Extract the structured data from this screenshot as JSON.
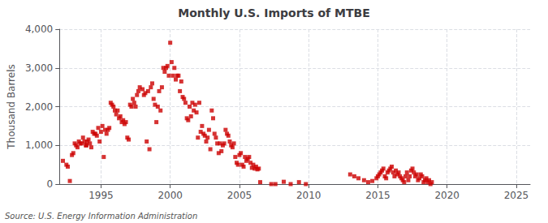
{
  "chart_data": {
    "type": "scatter",
    "title": "Monthly U.S. Imports of MTBE",
    "ylabel": "Thousand Barrels",
    "annotations": [
      "Source: U.S. Energy Information Administration"
    ],
    "color": "#cc0000",
    "marker": "square",
    "grid": true,
    "xlim": [
      1992.0,
      2026.0
    ],
    "xticks": [
      1995,
      2000,
      2005,
      2010,
      2015,
      2020,
      2025
    ],
    "ylim": [
      0,
      4000
    ],
    "yticks": [
      0,
      {
        "value": 1000,
        "label": "1,000"
      },
      {
        "value": 2000,
        "label": "2,000"
      },
      {
        "value": 3000,
        "label": "3,000"
      },
      {
        "value": 4000,
        "label": "4,000"
      }
    ],
    "x": [
      1992.25,
      1992.5,
      1992.6,
      1992.75,
      1992.9,
      1993.0,
      1993.1,
      1993.2,
      1993.3,
      1993.4,
      1993.5,
      1993.6,
      1993.7,
      1993.8,
      1993.9,
      1993.95,
      1994.0,
      1994.1,
      1994.2,
      1994.3,
      1994.4,
      1994.5,
      1994.6,
      1994.7,
      1994.8,
      1994.9,
      1995.0,
      1995.1,
      1995.2,
      1995.3,
      1995.4,
      1995.5,
      1995.6,
      1995.7,
      1995.8,
      1995.9,
      1996.0,
      1996.1,
      1996.2,
      1996.3,
      1996.4,
      1996.5,
      1996.6,
      1996.7,
      1996.8,
      1996.9,
      1997.0,
      1997.1,
      1997.2,
      1997.3,
      1997.4,
      1997.5,
      1997.6,
      1997.7,
      1997.8,
      1998.0,
      1998.1,
      1998.2,
      1998.3,
      1998.4,
      1998.5,
      1998.6,
      1998.7,
      1998.8,
      1998.9,
      1999.0,
      1999.1,
      1999.2,
      1999.3,
      1999.4,
      1999.5,
      1999.6,
      1999.7,
      1999.8,
      1999.9,
      2000.0,
      2000.1,
      2000.2,
      2000.3,
      2000.4,
      2000.5,
      2000.6,
      2000.7,
      2000.8,
      2000.9,
      2001.0,
      2001.1,
      2001.2,
      2001.3,
      2001.4,
      2001.5,
      2001.6,
      2001.7,
      2001.8,
      2001.9,
      2002.0,
      2002.1,
      2002.2,
      2002.3,
      2002.4,
      2002.5,
      2002.6,
      2002.7,
      2002.8,
      2002.9,
      2003.0,
      2003.1,
      2003.2,
      2003.3,
      2003.4,
      2003.5,
      2003.6,
      2003.7,
      2003.8,
      2003.9,
      2004.0,
      2004.1,
      2004.2,
      2004.3,
      2004.4,
      2004.5,
      2004.6,
      2004.7,
      2004.8,
      2004.9,
      2005.0,
      2005.1,
      2005.2,
      2005.3,
      2005.4,
      2005.5,
      2005.6,
      2005.7,
      2005.8,
      2005.9,
      2006.0,
      2006.1,
      2006.2,
      2006.3,
      2006.4,
      2006.5,
      2007.3,
      2007.6,
      2008.2,
      2008.7,
      2009.3,
      2009.8,
      2013.0,
      2013.3,
      2013.6,
      2014.0,
      2014.3,
      2014.6,
      2014.9,
      2015.0,
      2015.1,
      2015.2,
      2015.3,
      2015.4,
      2015.5,
      2015.6,
      2015.7,
      2015.8,
      2015.9,
      2016.0,
      2016.1,
      2016.2,
      2016.3,
      2016.4,
      2016.5,
      2016.6,
      2016.7,
      2016.8,
      2016.9,
      2017.0,
      2017.1,
      2017.2,
      2017.3,
      2017.4,
      2017.5,
      2017.6,
      2017.7,
      2017.8,
      2017.9,
      2018.0,
      2018.1,
      2018.2,
      2018.3,
      2018.4,
      2018.5,
      2018.6,
      2018.7,
      2018.8,
      2018.9
    ],
    "values": [
      600,
      500,
      450,
      80,
      750,
      800,
      1050,
      1000,
      950,
      1100,
      1050,
      1050,
      1200,
      1100,
      1000,
      1000,
      1100,
      1150,
      1050,
      950,
      1350,
      1300,
      1300,
      1250,
      1450,
      1100,
      1350,
      1500,
      700,
      1400,
      1300,
      1400,
      1450,
      2100,
      2050,
      2000,
      1900,
      1800,
      1900,
      1700,
      1750,
      1600,
      1650,
      1550,
      1600,
      1200,
      1150,
      2050,
      2000,
      2200,
      2100,
      2000,
      2300,
      2400,
      2500,
      2450,
      2300,
      2350,
      1100,
      2400,
      900,
      2500,
      2600,
      2200,
      2050,
      1600,
      2000,
      2400,
      1900,
      2500,
      3000,
      2900,
      3000,
      3050,
      2800,
      3650,
      3150,
      2800,
      3000,
      2700,
      2800,
      2800,
      2400,
      2650,
      2250,
      2200,
      2100,
      1700,
      1650,
      2000,
      1750,
      2100,
      1900,
      2050,
      1850,
      1200,
      2100,
      1350,
      1500,
      1300,
      1250,
      1100,
      1200,
      1400,
      900,
      1900,
      1700,
      1300,
      1200,
      1050,
      800,
      1050,
      850,
      1000,
      1050,
      1400,
      1300,
      1250,
      1100,
      1000,
      950,
      1050,
      700,
      550,
      500,
      750,
      800,
      500,
      450,
      700,
      600,
      650,
      700,
      550,
      420,
      500,
      400,
      450,
      380,
      400,
      50,
      0,
      0,
      60,
      0,
      50,
      0,
      250,
      200,
      150,
      100,
      50,
      80,
      150,
      200,
      250,
      300,
      350,
      400,
      200,
      150,
      300,
      350,
      400,
      450,
      300,
      200,
      350,
      250,
      300,
      200,
      150,
      100,
      50,
      200,
      300,
      100,
      200,
      350,
      400,
      300,
      200,
      250,
      100,
      150,
      250,
      200,
      50,
      100,
      150,
      50,
      100,
      0,
      50
    ]
  }
}
